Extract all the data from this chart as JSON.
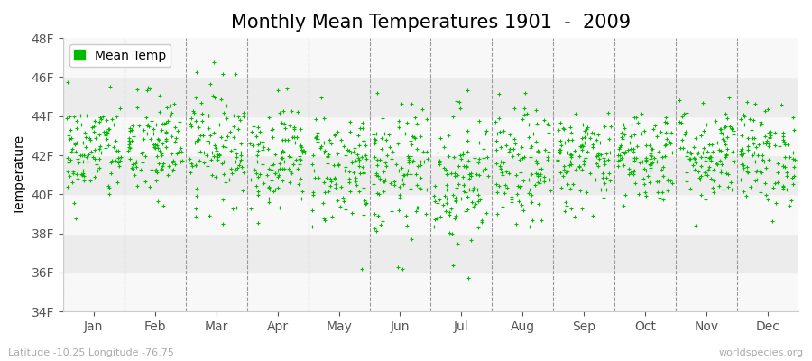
{
  "title": "Monthly Mean Temperatures 1901  -  2009",
  "ylabel": "Temperature",
  "marker_color": "#00bb00",
  "background_color": "#ffffff",
  "band_color_dark": "#ececec",
  "band_color_light": "#f8f8f8",
  "ylim": [
    34,
    48
  ],
  "ytick_labels": [
    "34F",
    "36F",
    "38F",
    "40F",
    "42F",
    "44F",
    "46F",
    "48F"
  ],
  "ytick_values": [
    34,
    36,
    38,
    40,
    42,
    44,
    46,
    48
  ],
  "months": [
    "Jan",
    "Feb",
    "Mar",
    "Apr",
    "May",
    "Jun",
    "Jul",
    "Aug",
    "Sep",
    "Oct",
    "Nov",
    "Dec"
  ],
  "footer_left": "Latitude -10.25 Longitude -76.75",
  "footer_right": "worldspecies.org",
  "legend_label": "Mean Temp",
  "title_fontsize": 15,
  "axis_fontsize": 10,
  "footer_fontsize": 8,
  "n_years": 109,
  "seed": 42,
  "monthly_mean": [
    42.2,
    42.4,
    42.6,
    42.0,
    41.4,
    41.1,
    40.9,
    41.3,
    41.8,
    42.0,
    42.1,
    42.0
  ],
  "monthly_std": [
    1.3,
    1.4,
    1.5,
    1.3,
    1.5,
    1.7,
    1.8,
    1.5,
    1.3,
    1.2,
    1.3,
    1.3
  ]
}
